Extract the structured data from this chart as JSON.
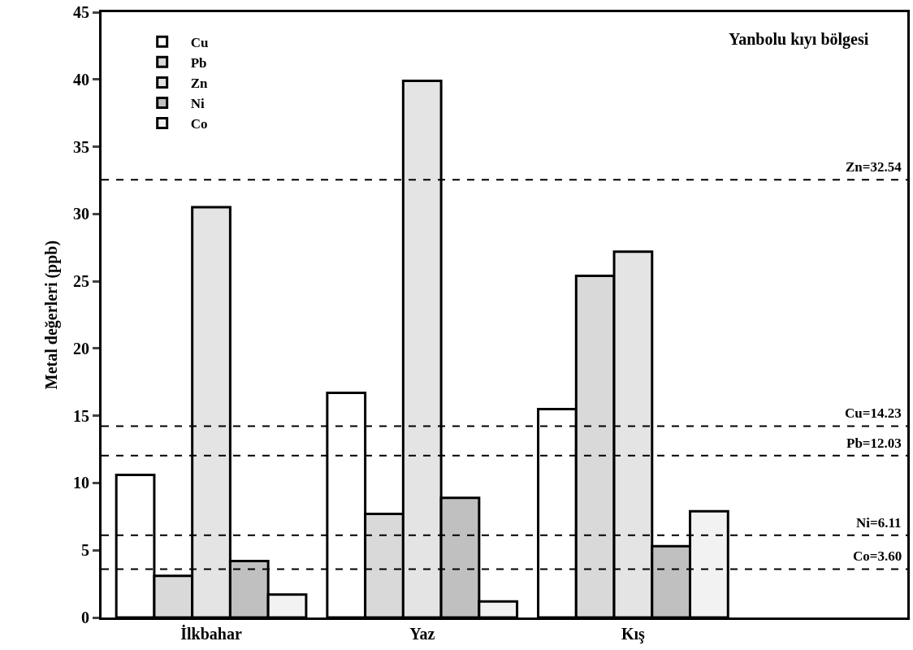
{
  "chart_data": {
    "type": "bar",
    "title": "Yanbolu kıyı bölgesi",
    "ylabel": "Metal değerleri (ppb)",
    "categories": [
      "İlkbahar",
      "Yaz",
      "Kış"
    ],
    "series": [
      {
        "name": "Cu",
        "color": "#ffffff",
        "values": [
          10.6,
          16.7,
          15.5
        ]
      },
      {
        "name": "Pb",
        "color": "#d9d9d9",
        "values": [
          3.1,
          7.7,
          25.4
        ]
      },
      {
        "name": "Zn",
        "color": "#e4e4e4",
        "values": [
          30.5,
          39.9,
          27.2
        ]
      },
      {
        "name": "Ni",
        "color": "#c0c0c0",
        "values": [
          4.2,
          8.9,
          5.3
        ]
      },
      {
        "name": "Co",
        "color": "#f2f2f2",
        "values": [
          1.7,
          1.2,
          7.9
        ]
      }
    ],
    "ylim": [
      0,
      45
    ],
    "yticks": [
      0,
      5,
      10,
      15,
      20,
      25,
      30,
      35,
      40,
      45
    ],
    "ref_lines": [
      {
        "axis": "y",
        "value": 32.54,
        "label": "Zn=32.54",
        "color": "#000000",
        "line_style": "dashed"
      },
      {
        "axis": "y",
        "value": 14.23,
        "label": "Cu=14.23",
        "color": "#000000",
        "line_style": "dashed"
      },
      {
        "axis": "y",
        "value": 12.03,
        "label": "Pb=12.03",
        "color": "#000000",
        "line_style": "dashed"
      },
      {
        "axis": "y",
        "value": 6.11,
        "label": "Ni=6.11",
        "color": "#000000",
        "line_style": "dashed"
      },
      {
        "axis": "y",
        "value": 3.6,
        "label": "Co=3.60",
        "color": "#000000",
        "line_style": "dashed"
      }
    ],
    "legend": "top left"
  }
}
